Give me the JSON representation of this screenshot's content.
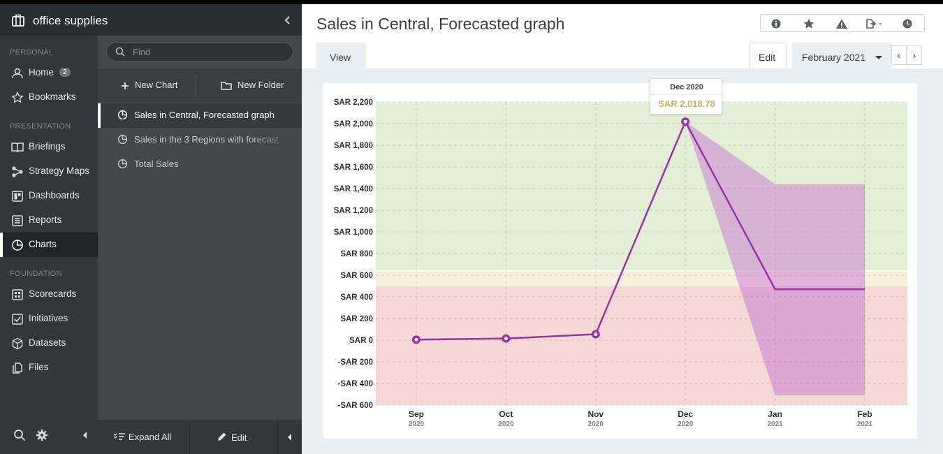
{
  "app": {
    "title": "office supplies"
  },
  "sidebar": {
    "sections": [
      {
        "label": "PERSONAL"
      },
      {
        "label": "PRESENTATION"
      },
      {
        "label": "FOUNDATION"
      }
    ],
    "items": [
      {
        "label": "Home",
        "icon": "user-icon",
        "badge": "2"
      },
      {
        "label": "Bookmarks",
        "icon": "star-icon"
      },
      {
        "label": "Briefings",
        "icon": "book-icon"
      },
      {
        "label": "Strategy Maps",
        "icon": "strategy-map-icon"
      },
      {
        "label": "Dashboards",
        "icon": "dashboard-icon"
      },
      {
        "label": "Reports",
        "icon": "report-icon"
      },
      {
        "label": "Charts",
        "icon": "pie-chart-icon",
        "active": true
      },
      {
        "label": "Scorecards",
        "icon": "scorecard-icon"
      },
      {
        "label": "Initiatives",
        "icon": "checkbox-icon"
      },
      {
        "label": "Datasets",
        "icon": "cube-icon"
      },
      {
        "label": "Files",
        "icon": "files-icon"
      }
    ]
  },
  "panel": {
    "search_placeholder": "Find",
    "new_chart": "New Chart",
    "new_folder": "New Folder",
    "charts": [
      {
        "label": "Sales in Central, Forecasted graph",
        "selected": true
      },
      {
        "label": "Sales in the 3 Regions with forecast"
      },
      {
        "label": "Total Sales"
      }
    ],
    "expand_all": "Expand All",
    "edit": "Edit"
  },
  "main": {
    "title": "Sales in Central, Forecasted graph",
    "tab_view": "View",
    "tab_edit": "Edit",
    "period": "February 2021",
    "prev": "‹",
    "next": "›"
  },
  "tooltip": {
    "date": "Dec 2020",
    "value": "SAR 2,018.78"
  },
  "colors": {
    "line": "#9b2fae",
    "forecast_band": "#c97fd1",
    "zone_good": "#e3efd2",
    "zone_warn": "#f5efdb",
    "zone_bad": "#f3d8d3",
    "tooltip_value": "#c5ae5d"
  },
  "chart_data": {
    "type": "line",
    "title": "Sales in Central, Forecasted graph",
    "x": [
      {
        "month": "Sep",
        "year": "2020"
      },
      {
        "month": "Oct",
        "year": "2020"
      },
      {
        "month": "Nov",
        "year": "2020"
      },
      {
        "month": "Dec",
        "year": "2020"
      },
      {
        "month": "Jan",
        "year": "2021"
      },
      {
        "month": "Feb",
        "year": "2021"
      }
    ],
    "series": [
      {
        "values": [
          5,
          15,
          55,
          2018.78,
          470,
          470
        ]
      }
    ],
    "forecast_band": {
      "start_index": 3,
      "upper": [
        2018.78,
        1440,
        1440
      ],
      "lower": [
        2018.78,
        -510,
        -510
      ]
    },
    "zones": [
      {
        "from": 640,
        "to": 2200,
        "status": "good"
      },
      {
        "from": 500,
        "to": 640,
        "status": "warning"
      },
      {
        "from": -600,
        "to": 500,
        "status": "bad"
      }
    ],
    "y_ticks": [
      "SAR 2,200",
      "SAR 2,000",
      "SAR 1,800",
      "SAR 1,600",
      "SAR 1,400",
      "SAR 1,200",
      "SAR 1,000",
      "SAR 800",
      "SAR 600",
      "SAR 400",
      "SAR 200",
      "SAR 0",
      "-SAR 200",
      "-SAR 400",
      "-SAR 600"
    ],
    "ylim": [
      -600,
      2200
    ],
    "grid": true,
    "legend": "none"
  }
}
